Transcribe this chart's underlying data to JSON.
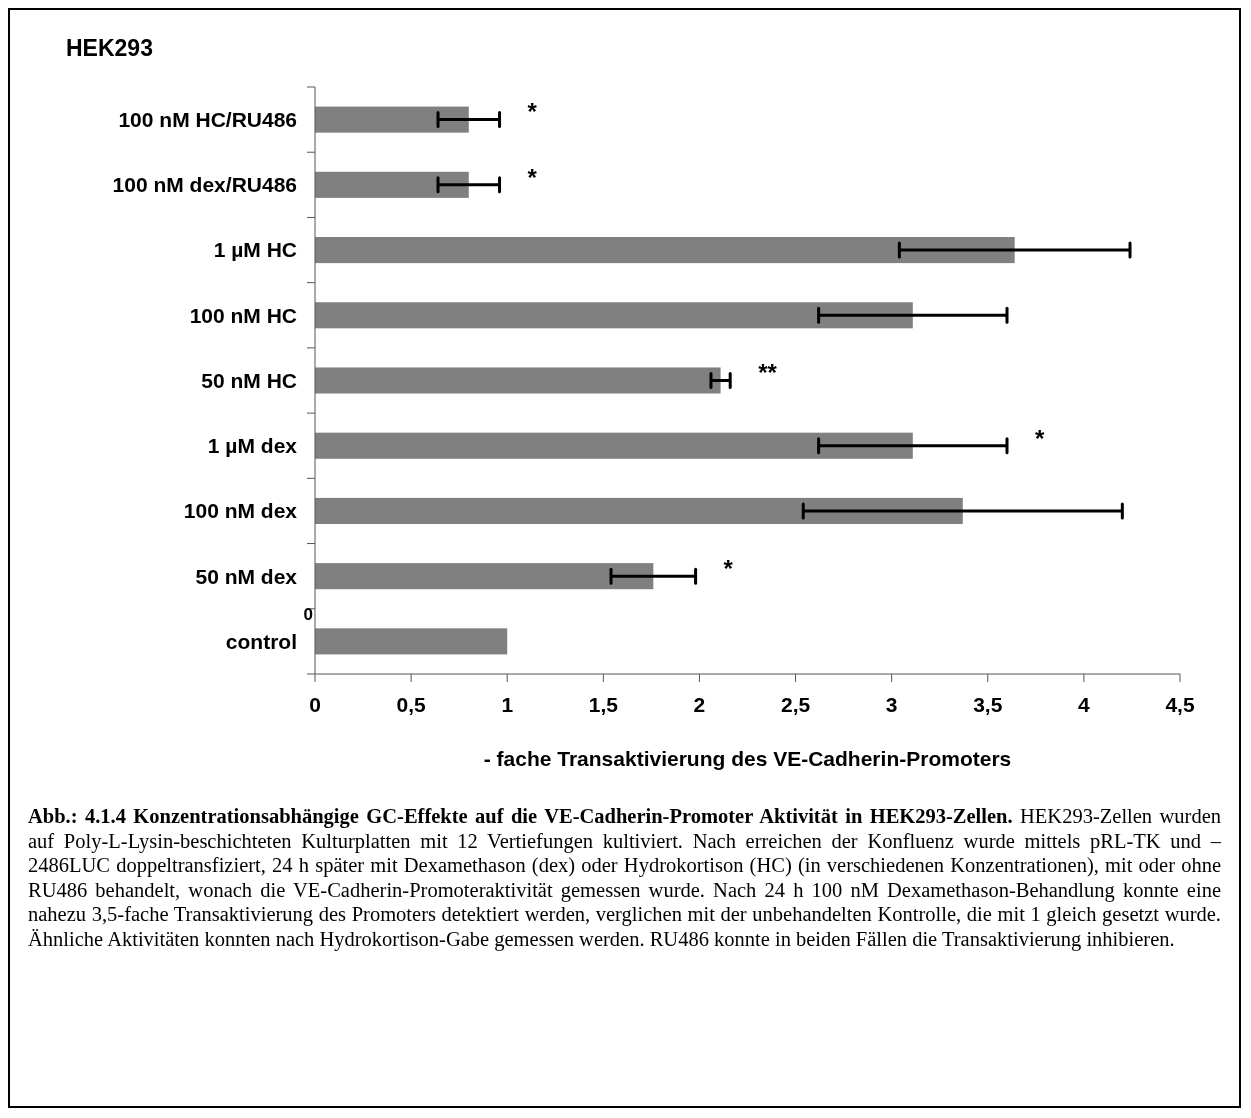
{
  "chart_data": {
    "type": "bar",
    "orientation": "horizontal",
    "title": "HEK293",
    "xlabel": "- fache Transaktivierung des VE-Cadherin-Promoters",
    "categories": [
      "100 nM HC/RU486",
      "100 nM dex/RU486",
      "1 µM HC",
      "100 nM HC",
      "50 nM HC",
      "1 µM dex",
      "100 nM dex",
      "50 nM dex",
      "control"
    ],
    "values": [
      0.8,
      0.8,
      3.64,
      3.11,
      2.11,
      3.11,
      3.37,
      1.76,
      1.0
    ],
    "errors": [
      0.16,
      0.16,
      0.6,
      0.49,
      0.05,
      0.49,
      0.83,
      0.22,
      null
    ],
    "color": "#808080",
    "xlim": [
      0,
      4.5
    ],
    "xticks": [
      0,
      {
        "value": 0.5,
        "label": "0,5"
      },
      1,
      {
        "value": 1.5,
        "label": "1,5"
      },
      2,
      {
        "value": 2.5,
        "label": "2,5"
      },
      3,
      {
        "value": 3.5,
        "label": "3,5"
      },
      4,
      {
        "value": 4.5,
        "label": "4,5"
      }
    ],
    "grid": false,
    "annotations": [
      {
        "text": "*",
        "x": 0.96,
        "y": "100 nM HC/RU486"
      },
      {
        "text": "*",
        "x": 0.96,
        "y": "100 nM dex/RU486"
      },
      {
        "text": "**",
        "x": 2.16,
        "y": "50 nM HC"
      },
      {
        "text": "*",
        "x": 3.6,
        "y": "1 µM dex"
      },
      {
        "text": "*",
        "x": 1.98,
        "y": "50 nM dex"
      },
      {
        "text": "0",
        "x": 0,
        "y": "control"
      },
      "Abb.: 4.1.4 Konzentrationsabhängige GC-Effekte auf die VE-Cadherin-Promoter Aktivität in HEK293-Zellen.",
      "HEK293-Zellen wurden auf Poly-L-Lysin-beschichteten Kulturplatten mit 12 Vertiefungen kultiviert. Nach erreichen der Konfluenz wurde mittels pRL-TK und –2486LUC doppeltransfiziert, 24 h später mit Dexamethason (dex) oder Hydrokortison (HC) (in verschiedenen Konzentrationen), mit oder ohne RU486 behandelt, wonach die VE-Cadherin-Promoteraktivität gemessen wurde. Nach 24 h 100 nM Dexamethason-Behandlung konnte eine nahezu 3,5-fache Transaktivierung des Promoters detektiert werden, verglichen mit der unbehandelten Kontrolle, die mit 1 gleich gesetzt wurde. Ähnliche Aktivitäten konnten nach Hydrokortison-Gabe gemessen werden. RU486 konnte in beiden Fällen die Transaktivierung inhibieren."
    ]
  }
}
